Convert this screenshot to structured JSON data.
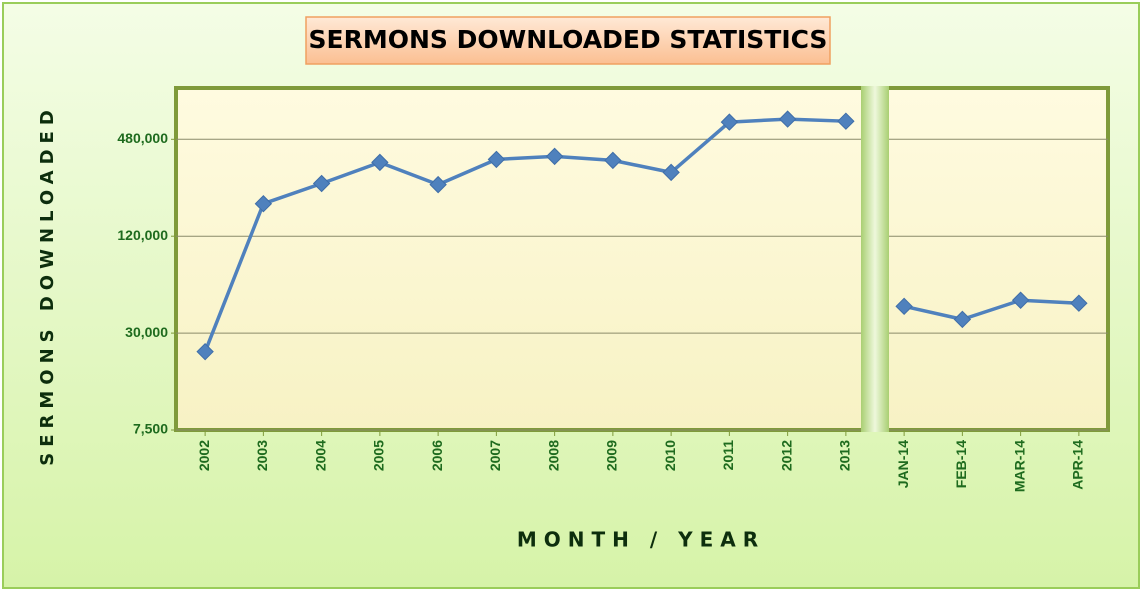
{
  "chart_data": {
    "type": "line",
    "title": "SERMONS DOWNLOADED STATISTICS",
    "y_label": "SERMONS DOWNLOADED",
    "x_label": "MONTH / YEAR",
    "categories": [
      "2002",
      "2003",
      "2004",
      "2005",
      "2006",
      "2007",
      "2008",
      "2009",
      "2010",
      "2011",
      "2012",
      "2013",
      null,
      "JAN-14",
      "FEB-14",
      "MAR-14",
      "APR-14"
    ],
    "values": [
      23000,
      191000,
      255000,
      345000,
      251000,
      360000,
      376000,
      355000,
      299000,
      614000,
      641000,
      622000,
      null,
      44000,
      36500,
      48000,
      46000
    ],
    "color": "#4f81bd",
    "log_scale": true,
    "ylim": [
      7500,
      1000000
    ],
    "yticks": [
      {
        "value": 7500,
        "label": "7,500"
      },
      {
        "value": 30000,
        "label": "30,000"
      },
      {
        "value": 120000,
        "label": "120,000"
      },
      {
        "value": 480000,
        "label": "480,000"
      }
    ],
    "grid": true
  }
}
